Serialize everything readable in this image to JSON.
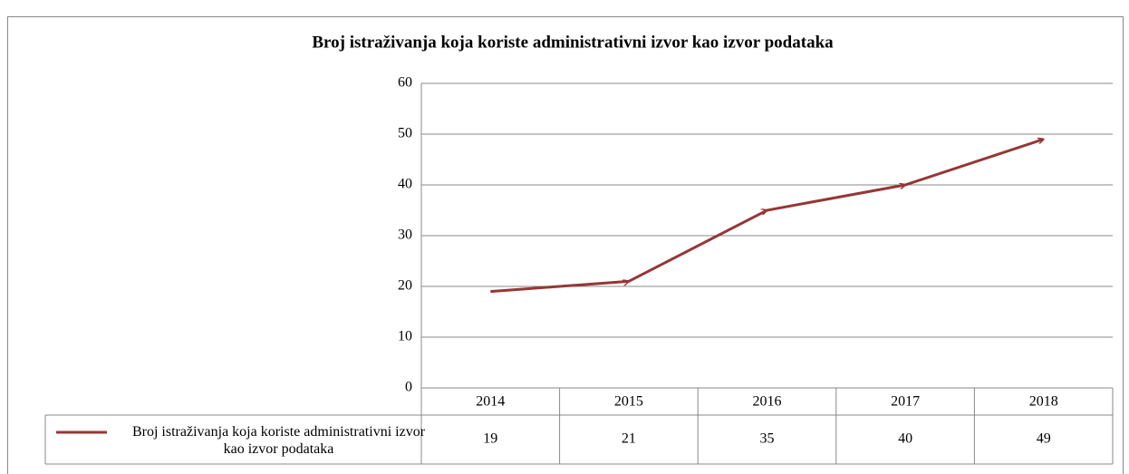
{
  "chart_data": {
    "type": "line",
    "title": "Broj istraživanja koja koriste administrativni izvor kao izvor podataka",
    "categories": [
      "2014",
      "2015",
      "2016",
      "2017",
      "2018"
    ],
    "series": [
      {
        "name": "Broj istraživanja koja koriste administrativni izvor kao izvor podataka",
        "color": "#953735",
        "values": [
          19,
          21,
          35,
          40,
          49
        ]
      }
    ],
    "ylim": [
      0,
      60
    ],
    "yticks": [
      0,
      10,
      20,
      30,
      40,
      50,
      60
    ],
    "grid": true,
    "data_table": true
  }
}
